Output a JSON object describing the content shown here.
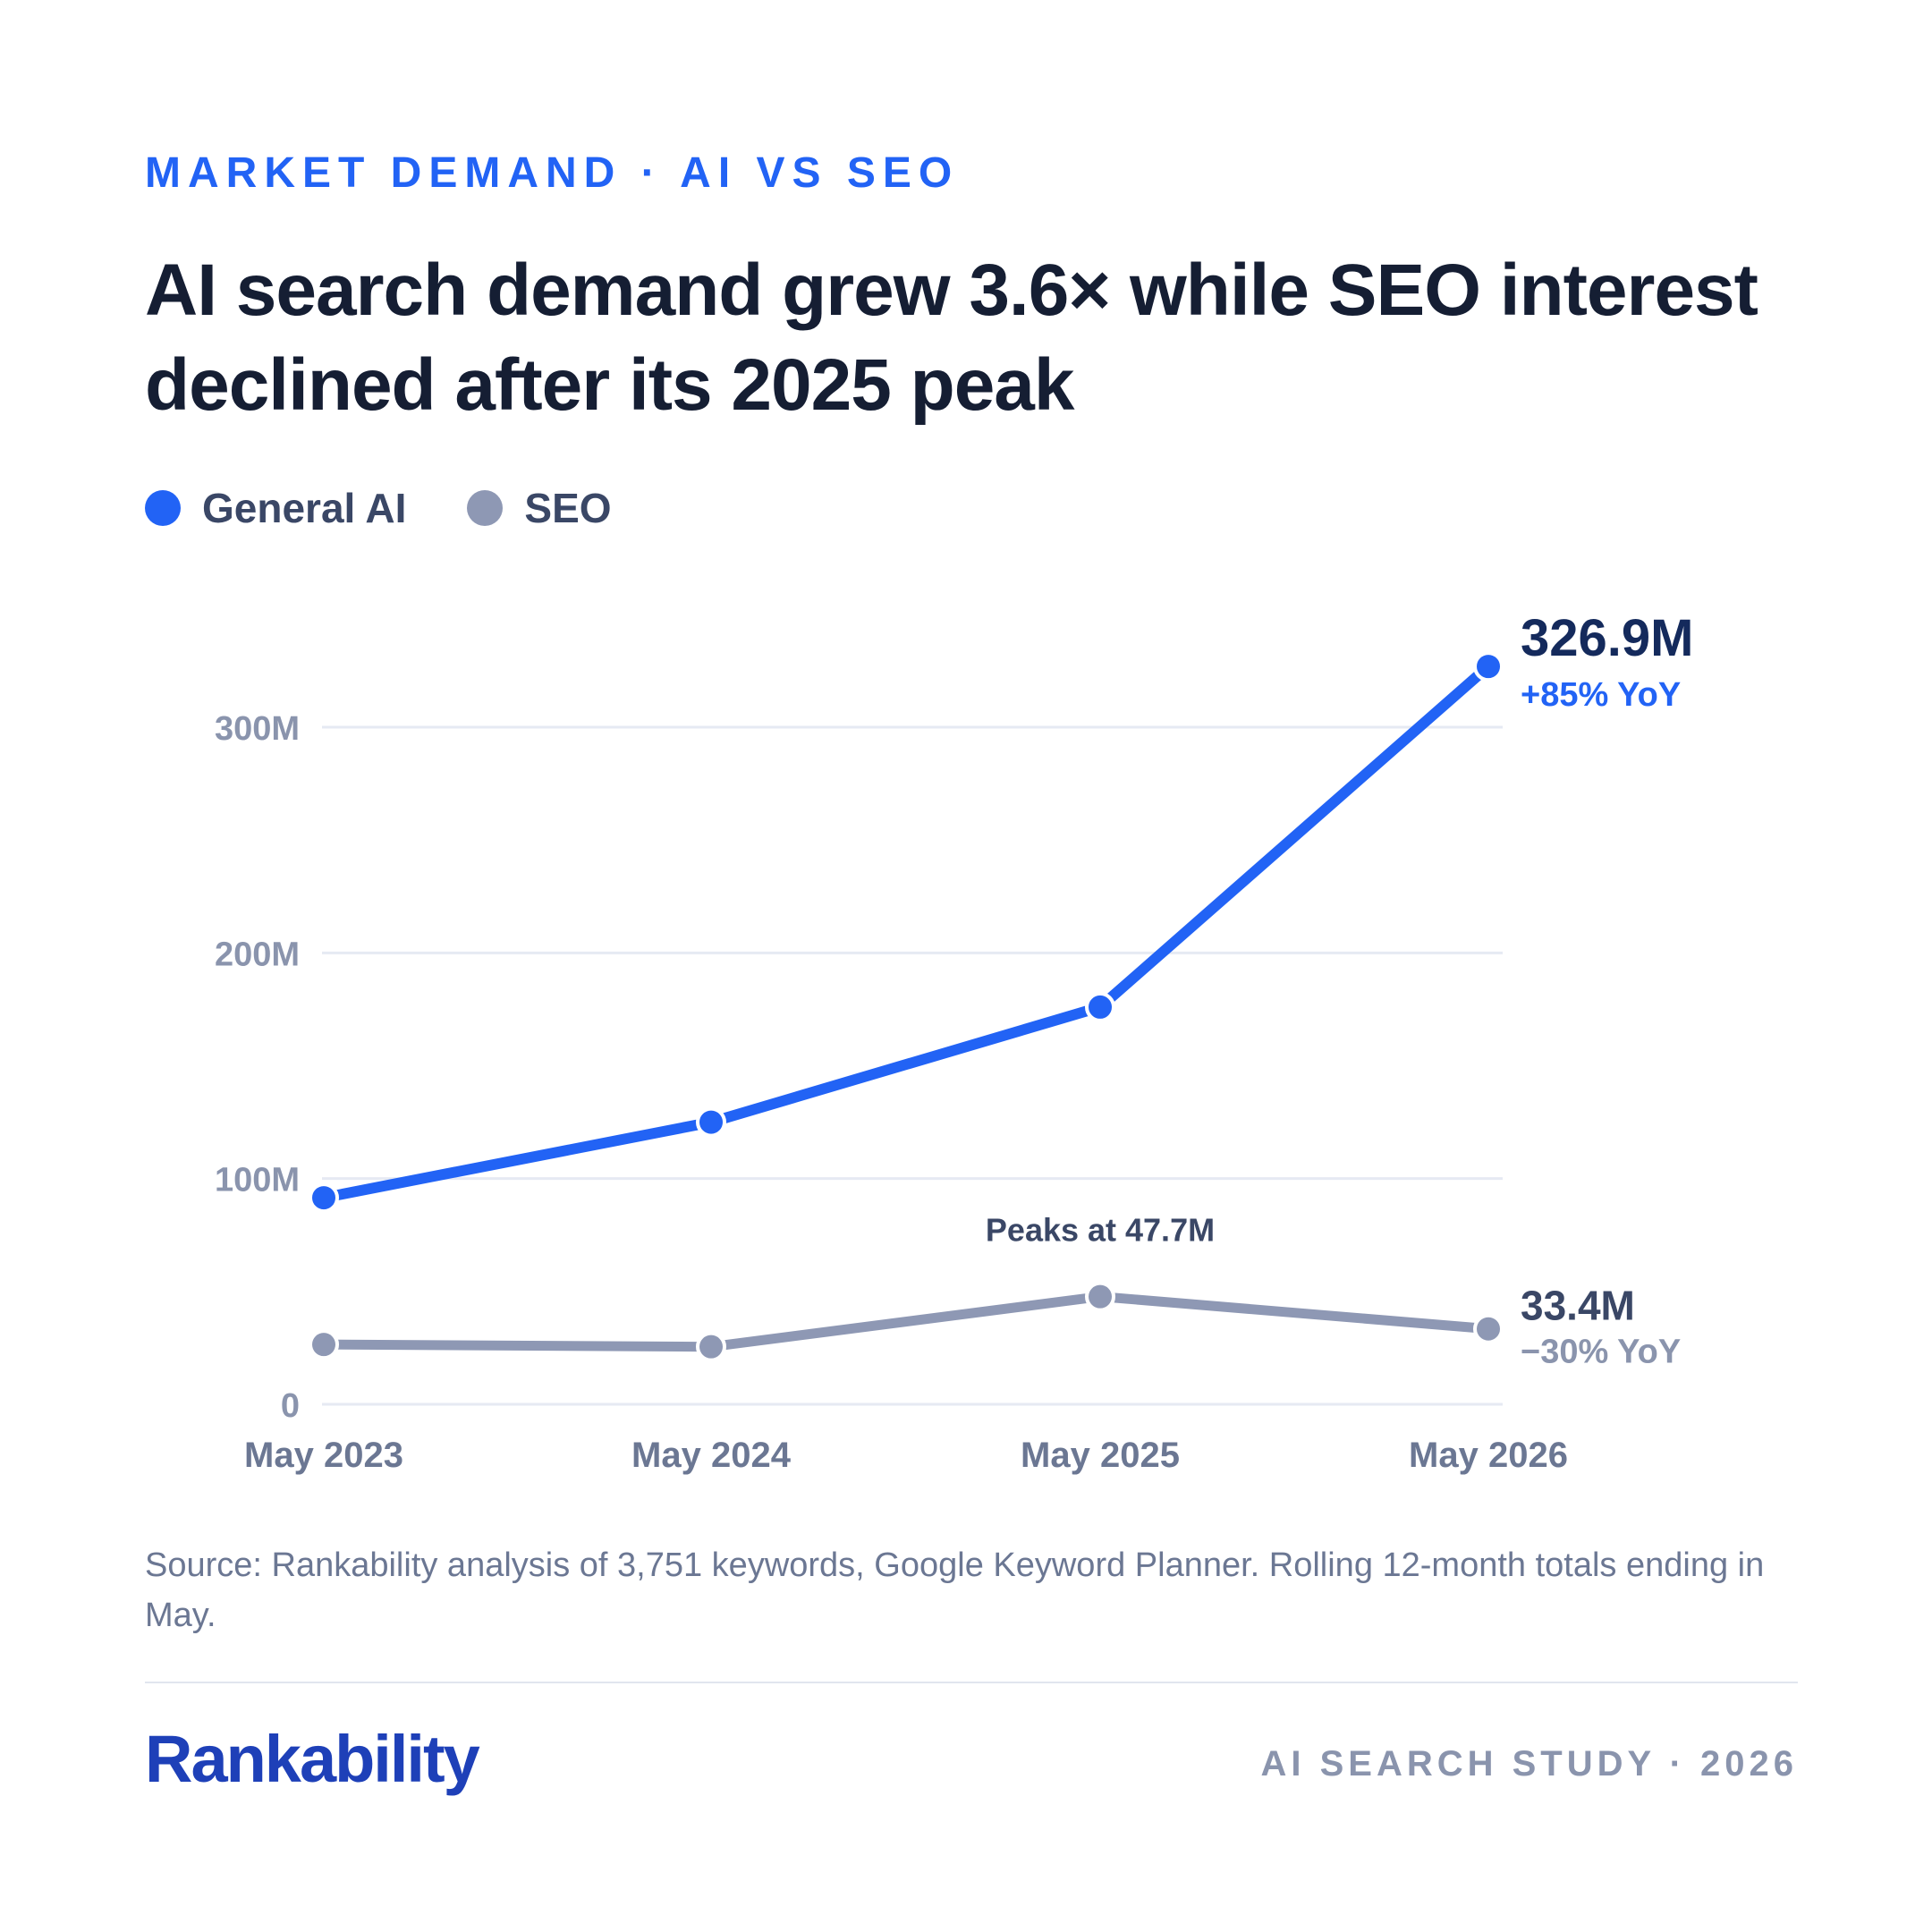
{
  "eyebrow": "MARKET DEMAND · AI VS SEO",
  "title": "AI search demand grew 3.6× while SEO interest declined after its 2025 peak",
  "legend": [
    {
      "label": "General AI",
      "color": "#2263F5"
    },
    {
      "label": "SEO",
      "color": "#8E98B4"
    }
  ],
  "chart_data": {
    "type": "line",
    "categories": [
      "May 2023",
      "May 2024",
      "May 2025",
      "May 2026"
    ],
    "series": [
      {
        "name": "General AI",
        "values": [
          91.5,
          125,
          176,
          326.9
        ],
        "color": "#2263F5"
      },
      {
        "name": "SEO",
        "values": [
          26.5,
          25.5,
          47.7,
          33.4
        ],
        "color": "#8E98B4"
      }
    ],
    "ylim": [
      0,
      300
    ],
    "yticks": [
      0,
      100,
      200,
      300
    ],
    "ytick_labels": [
      "0",
      "100M",
      "200M",
      "300M"
    ],
    "grid": true,
    "annotations": {
      "ai_end_value": "326.9M",
      "ai_end_change": "+85% YoY",
      "seo_peak_note": "Peaks at 47.7M",
      "seo_end_value": "33.4M",
      "seo_end_change": "−30% YoY"
    }
  },
  "source": "Source: Rankability analysis of 3,751 keywords, Google Keyword Planner. Rolling 12-month totals ending in May.",
  "footer": {
    "brand": "Rankability",
    "study": "AI SEARCH STUDY · 2026"
  }
}
